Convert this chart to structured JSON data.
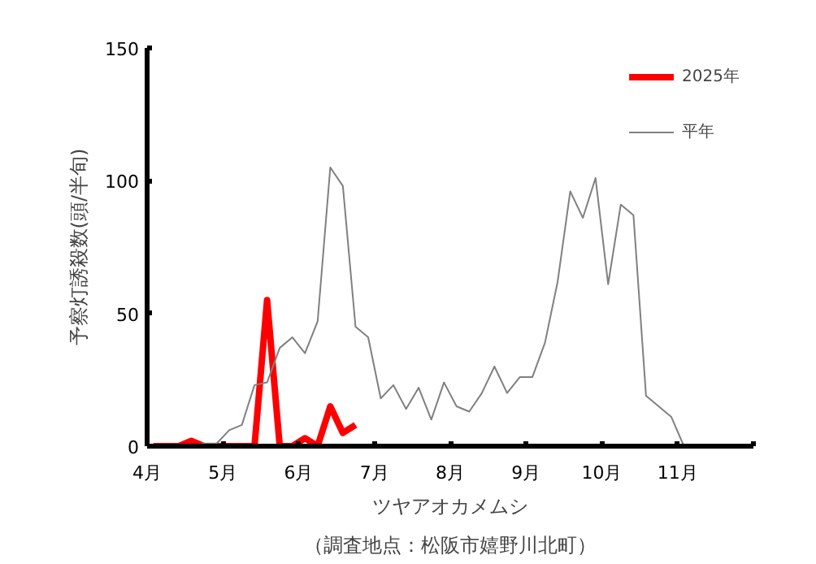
{
  "chart_data": {
    "type": "line",
    "xlabel": "ツヤアオカメムシ",
    "ylabel": "予察灯誘殺数(頭/半旬)",
    "annotations": [
      "（調査地点：松阪市嬉野川北町）"
    ],
    "xlim": [
      4,
      12
    ],
    "xticks": [
      {
        "value": 4,
        "label": "4月"
      },
      {
        "value": 5,
        "label": "5月"
      },
      {
        "value": 6,
        "label": "6月"
      },
      {
        "value": 7,
        "label": "7月"
      },
      {
        "value": 8,
        "label": "8月"
      },
      {
        "value": 9,
        "label": "9月"
      },
      {
        "value": 10,
        "label": "10月"
      },
      {
        "value": 11,
        "label": "11月"
      },
      {
        "value": 12,
        "label": null
      }
    ],
    "ylim": [
      0,
      150
    ],
    "yticks": [
      0,
      50,
      100,
      150
    ],
    "grid": false,
    "legend": "top right",
    "series": [
      {
        "name": "2025年",
        "color": "#ff0000",
        "x": [
          4.083,
          4.25,
          4.417,
          4.583,
          4.75,
          4.917,
          5.083,
          5.25,
          5.417,
          5.583,
          5.75,
          5.917,
          6.083,
          6.25,
          6.417,
          6.583,
          6.75
        ],
        "values": [
          0,
          0,
          0,
          2,
          0,
          0,
          0,
          0,
          0,
          55,
          0,
          0,
          3,
          0,
          15,
          5,
          8
        ]
      },
      {
        "name": "平年",
        "color": "#808080",
        "x": [
          4.083,
          4.25,
          4.417,
          4.583,
          4.75,
          4.917,
          5.083,
          5.25,
          5.417,
          5.583,
          5.75,
          5.917,
          6.083,
          6.25,
          6.417,
          6.583,
          6.75,
          6.917,
          7.083,
          7.25,
          7.417,
          7.583,
          7.75,
          7.917,
          8.083,
          8.25,
          8.417,
          8.583,
          8.75,
          8.917,
          9.083,
          9.25,
          9.417,
          9.583,
          9.75,
          9.917,
          10.083,
          10.25,
          10.417,
          10.583,
          10.75,
          10.917,
          11.083,
          11.25,
          11.417,
          11.583,
          11.75,
          11.917
        ],
        "values": [
          0,
          0,
          0,
          0,
          1,
          1,
          6,
          8,
          23,
          24,
          37,
          41,
          35,
          47,
          105,
          98,
          45,
          41,
          18,
          23,
          14,
          22,
          10,
          24,
          15,
          13,
          20,
          30,
          20,
          26,
          26,
          39,
          62,
          96,
          86,
          101,
          61,
          91,
          87,
          19,
          15,
          11,
          0,
          0,
          0,
          0,
          0,
          0
        ]
      }
    ]
  }
}
